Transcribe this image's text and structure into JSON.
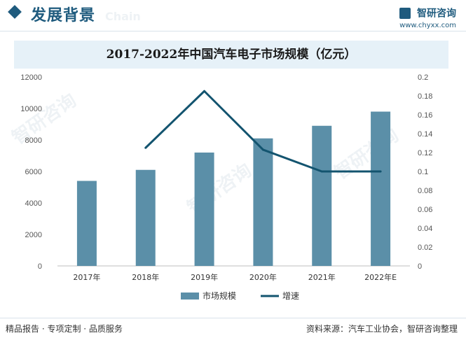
{
  "header": {
    "title": "发展背景",
    "brand_name": "智研咨询",
    "brand_url": "www.chyxx.com"
  },
  "chart_data": {
    "type": "bar",
    "title": "2017-2022年中国汽车电子市场规模（亿元）",
    "categories": [
      "2017年",
      "2018年",
      "2019年",
      "2020年",
      "2021年",
      "2022年E"
    ],
    "series": [
      {
        "name": "市场规模",
        "type": "bar",
        "axis": "left",
        "values": [
          5400,
          6100,
          7200,
          8100,
          8900,
          9800
        ]
      },
      {
        "name": "增速",
        "type": "line",
        "axis": "right",
        "values": [
          null,
          0.125,
          0.185,
          0.123,
          0.1,
          0.1
        ]
      }
    ],
    "y_left": {
      "min": 0,
      "max": 12000,
      "ticks": [
        0,
        2000,
        4000,
        6000,
        8000,
        10000,
        12000
      ]
    },
    "y_right": {
      "min": 0,
      "max": 0.2,
      "ticks": [
        "0",
        "0.02",
        "0.04",
        "0.06",
        "0.08",
        "0.1",
        "0.12",
        "0.14",
        "0.16",
        "0.18",
        "0.2"
      ]
    },
    "grid": false,
    "legend": "bottom",
    "colors": {
      "bar": "#5b8fa8",
      "line": "#13546f"
    }
  },
  "footer": {
    "left": "精品报告 · 专项定制 · 品质服务",
    "right": "资料来源：汽车工业协会，智研咨询整理"
  },
  "watermark": {
    "text": "智研咨询",
    "logo_text": "Chain"
  }
}
